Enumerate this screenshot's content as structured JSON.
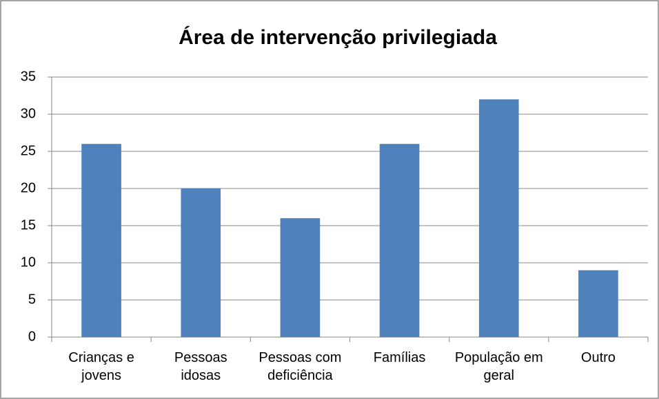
{
  "chart_data": {
    "type": "bar",
    "title": "Área de intervenção privilegiada",
    "categories": [
      "Crianças e jovens",
      "Pessoas idosas",
      "Pessoas com deficiência",
      "Famílias",
      "População em geral",
      "Outro"
    ],
    "values": [
      26,
      20,
      16,
      26,
      32,
      9
    ],
    "color": "#4f81bd",
    "ylim": [
      0,
      35
    ],
    "yticks": [
      0,
      5,
      10,
      15,
      20,
      25,
      30,
      35
    ],
    "grid": true
  }
}
